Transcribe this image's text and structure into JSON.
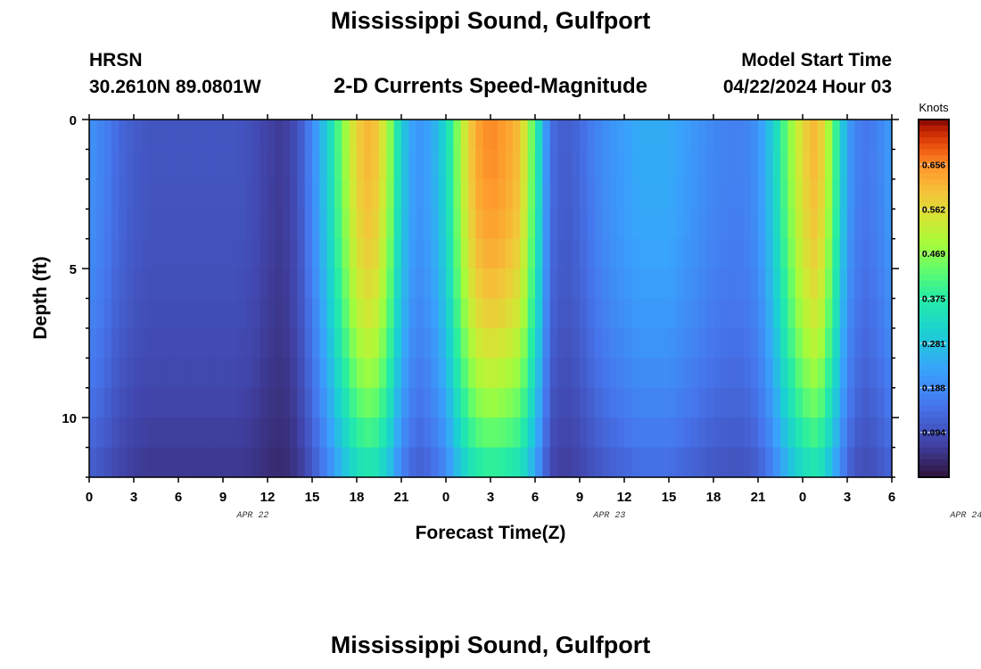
{
  "header": {
    "title": "Mississippi Sound, Gulfport",
    "station_code": "HRSN",
    "coordinates": "30.2610N  89.0801W",
    "chart_title": "2-D Currents Speed-Magnitude",
    "model_start_label": "Model Start Time",
    "model_start_value": "04/22/2024 Hour 03"
  },
  "footer": {
    "title": "Mississippi Sound, Gulfport"
  },
  "chart_data": {
    "type": "heatmap",
    "title": "2-D Currents Speed-Magnitude",
    "xlabel": "Forecast Time(Z)",
    "ylabel": "Depth (ft)",
    "x_start": "04/22/2024 00Z",
    "x_end": "04/24/2024 06Z",
    "x_ticks": [
      "0",
      "3",
      "6",
      "9",
      "12",
      "15",
      "18",
      "21",
      "0",
      "3",
      "6",
      "9",
      "12",
      "15",
      "18",
      "21",
      "0",
      "3",
      "6"
    ],
    "date_labels": [
      {
        "text": "APR 22",
        "hour": 11
      },
      {
        "text": "APR 23",
        "hour": 35
      },
      {
        "text": "APR 24",
        "hour": 59
      }
    ],
    "y_ticks": [
      "0",
      "5",
      "10"
    ],
    "ylim": [
      0,
      12
    ],
    "y_inverted": true,
    "colorbar": {
      "label": "Knots",
      "ticks": [
        "0.094",
        "0.188",
        "0.281",
        "0.375",
        "0.469",
        "0.562",
        "0.656"
      ],
      "range": [
        0,
        0.75
      ],
      "colormap": "turbo"
    },
    "surface_speed_profile": {
      "unit": "knots",
      "hours": [
        0,
        1,
        2,
        3,
        4,
        5,
        6,
        7,
        8,
        9,
        10,
        11,
        12,
        13,
        14,
        15,
        16,
        17,
        18,
        19,
        20,
        21,
        22,
        23,
        24,
        25,
        26,
        27,
        28,
        29,
        30,
        31,
        32,
        33,
        34,
        35,
        36,
        37,
        38,
        39,
        40,
        41,
        42,
        43,
        44,
        45,
        46,
        47,
        48,
        49,
        50,
        51,
        52,
        53,
        54
      ],
      "speeds": [
        0.2,
        0.17,
        0.13,
        0.11,
        0.1,
        0.1,
        0.1,
        0.1,
        0.1,
        0.1,
        0.1,
        0.09,
        0.07,
        0.06,
        0.09,
        0.18,
        0.3,
        0.45,
        0.58,
        0.62,
        0.52,
        0.3,
        0.2,
        0.23,
        0.32,
        0.5,
        0.63,
        0.66,
        0.64,
        0.6,
        0.4,
        0.14,
        0.11,
        0.13,
        0.17,
        0.2,
        0.22,
        0.24,
        0.24,
        0.24,
        0.22,
        0.2,
        0.18,
        0.17,
        0.17,
        0.2,
        0.3,
        0.45,
        0.57,
        0.62,
        0.45,
        0.22,
        0.15,
        0.17,
        0.22
      ]
    },
    "depth_attenuation": "speeds decrease toward the bottom (12 ft); strongest flow near the surface"
  }
}
